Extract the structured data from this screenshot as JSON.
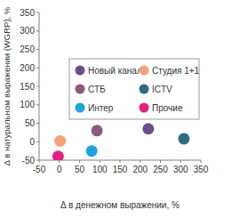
{
  "chart_data": {
    "type": "scatter",
    "x_label": "Δ в денежном выражении, %",
    "y_label": "Δ в натуральном выражении (WGRP), %",
    "xlim": [
      -50,
      350
    ],
    "xticks": [
      -50,
      0,
      50,
      100,
      150,
      200,
      250,
      300,
      350
    ],
    "ylim": [
      -50,
      350
    ],
    "yticks": [
      -50,
      0,
      50,
      100,
      150,
      200,
      250,
      300,
      350
    ],
    "grid": false,
    "legend": "upper right",
    "marker": "circle",
    "series": [
      {
        "name": "Новый канал",
        "color": "#6e4c8e",
        "x": [
          220
        ],
        "values": [
          35
        ]
      },
      {
        "name": "Студия 1+1",
        "color": "#f4a27c",
        "x": [
          2
        ],
        "values": [
          2
        ]
      },
      {
        "name": "СТБ",
        "color": "#8b5a7c",
        "x": [
          93
        ],
        "values": [
          30
        ]
      },
      {
        "name": "ICTV",
        "color": "#2e6c7c",
        "x": [
          308
        ],
        "values": [
          8
        ]
      },
      {
        "name": "Интер",
        "color": "#1ea3dc",
        "x": [
          80
        ],
        "values": [
          -25
        ]
      },
      {
        "name": "Прочие",
        "color": "#e2217f",
        "x": [
          -3
        ],
        "values": [
          -40
        ]
      }
    ]
  }
}
